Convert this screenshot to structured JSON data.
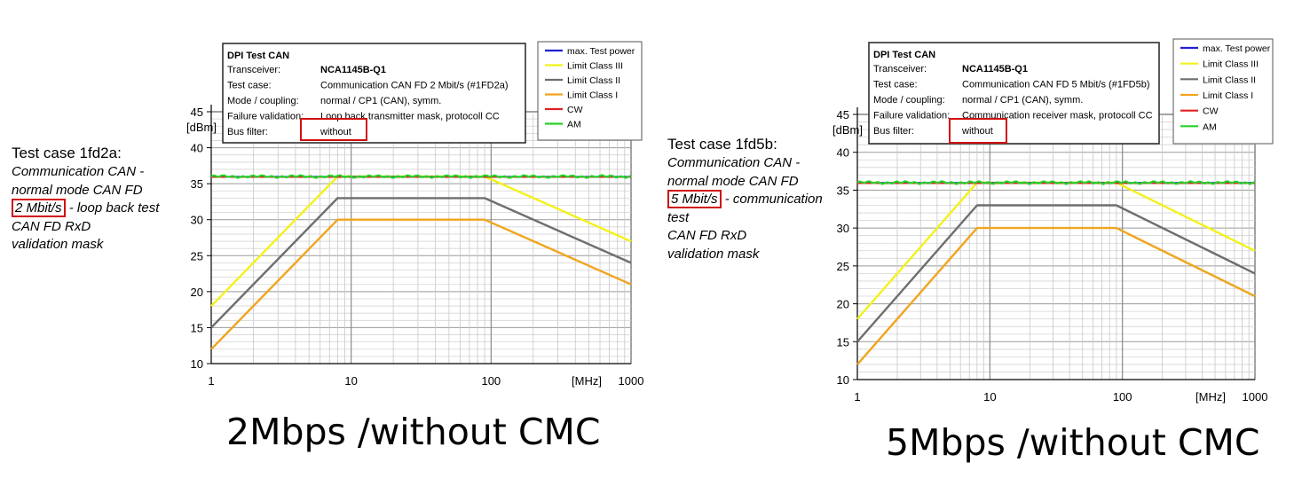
{
  "left_desc": {
    "heading": "Test case 1fd2a:",
    "line1": "Communication CAN -",
    "line2": "normal mode CAN FD",
    "line3_boxed": "2 Mbit/s",
    "line3_rest": "- loop back test",
    "line4": "CAN FD RxD",
    "line5": "validation mask"
  },
  "right_desc": {
    "heading": "Test case 1fd5b:",
    "line1": "Communication CAN -",
    "line2": "normal mode CAN FD",
    "line3_boxed": "5 Mbit/s",
    "line3_rest": "- communication",
    "line4": "test",
    "line5": "CAN FD RxD",
    "line6": "validation mask"
  },
  "captions": {
    "left": "2Mbps /without CMC",
    "right": "5Mbps /without CMC"
  },
  "colors": {
    "max_test_power": "#1f1fd6",
    "limit_class_3": "#f2f21a",
    "limit_class_2": "#6e6e6e",
    "limit_class_1": "#f0a51e",
    "cw": "#e02020",
    "am": "#28d228",
    "highlight_box": "#d01010"
  },
  "chart_data": [
    {
      "type": "line",
      "info": {
        "title": "DPI Test CAN",
        "rows": [
          {
            "label": "Transceiver:",
            "value": "NCA1145B-Q1"
          },
          {
            "label": "Test case:",
            "value": "Communication CAN FD 2 Mbit/s (#1FD2a)"
          },
          {
            "label": "Mode / coupling:",
            "value": "normal / CP1 (CAN), symm."
          },
          {
            "label": "Failure validation:",
            "value": "Loop back transmitter mask, protocoll CC"
          },
          {
            "label": "Bus filter:",
            "value": "without"
          }
        ]
      },
      "legend": [
        "max. Test power",
        "Limit Class III",
        "Limit Class II",
        "Limit Class I",
        "CW",
        "AM"
      ],
      "xscale": "log",
      "xlim": [
        1,
        1000
      ],
      "ylim": [
        10,
        45
      ],
      "xticks": [
        "1",
        "10",
        "100",
        "1000"
      ],
      "yticks": [
        "10",
        "15",
        "20",
        "25",
        "30",
        "35",
        "40",
        "45"
      ],
      "xunit": "[MHz]",
      "yunit": "[dBm]",
      "series": [
        {
          "name": "max. Test power",
          "x": [
            1,
            1000
          ],
          "y": [
            36,
            36
          ]
        },
        {
          "name": "Limit Class III",
          "x": [
            1,
            8,
            90,
            1000
          ],
          "y": [
            18,
            36,
            36,
            27
          ]
        },
        {
          "name": "Limit Class II",
          "x": [
            1,
            8,
            90,
            1000
          ],
          "y": [
            15,
            33,
            33,
            24
          ]
        },
        {
          "name": "Limit Class I",
          "x": [
            1,
            8,
            90,
            1000
          ],
          "y": [
            12,
            30,
            30,
            21
          ]
        },
        {
          "name": "CW",
          "x": [
            1,
            1000
          ],
          "y": [
            35.9,
            35.9
          ]
        },
        {
          "name": "AM",
          "x": [
            1,
            1000
          ],
          "y": [
            36,
            36
          ]
        }
      ]
    },
    {
      "type": "line",
      "info": {
        "title": "DPI Test CAN",
        "rows": [
          {
            "label": "Transceiver:",
            "value": "NCA1145B-Q1"
          },
          {
            "label": "Test case:",
            "value": "Communication CAN FD 5 Mbit/s (#1FD5b)"
          },
          {
            "label": "Mode / coupling:",
            "value": "normal / CP1 (CAN), symm."
          },
          {
            "label": "Failure validation:",
            "value": "Communication receiver mask, protocoll CC"
          },
          {
            "label": "Bus filter:",
            "value": "without"
          }
        ]
      },
      "legend": [
        "max. Test power",
        "Limit Class III",
        "Limit Class II",
        "Limit Class I",
        "CW",
        "AM"
      ],
      "xscale": "log",
      "xlim": [
        1,
        1000
      ],
      "ylim": [
        10,
        45
      ],
      "xticks": [
        "1",
        "10",
        "100",
        "1000"
      ],
      "yticks": [
        "10",
        "15",
        "20",
        "25",
        "30",
        "35",
        "40",
        "45"
      ],
      "xunit": "[MHz]",
      "yunit": "[dBm]",
      "series": [
        {
          "name": "max. Test power",
          "x": [
            1,
            1000
          ],
          "y": [
            36,
            36
          ]
        },
        {
          "name": "Limit Class III",
          "x": [
            1,
            8,
            90,
            1000
          ],
          "y": [
            18,
            36,
            36,
            27
          ]
        },
        {
          "name": "Limit Class II",
          "x": [
            1,
            8,
            90,
            1000
          ],
          "y": [
            15,
            33,
            33,
            24
          ]
        },
        {
          "name": "Limit Class I",
          "x": [
            1,
            8,
            90,
            1000
          ],
          "y": [
            12,
            30,
            30,
            21
          ]
        },
        {
          "name": "CW",
          "x": [
            1,
            1000
          ],
          "y": [
            35.9,
            35.9
          ]
        },
        {
          "name": "AM",
          "x": [
            1,
            1000
          ],
          "y": [
            36,
            36
          ]
        }
      ]
    }
  ]
}
